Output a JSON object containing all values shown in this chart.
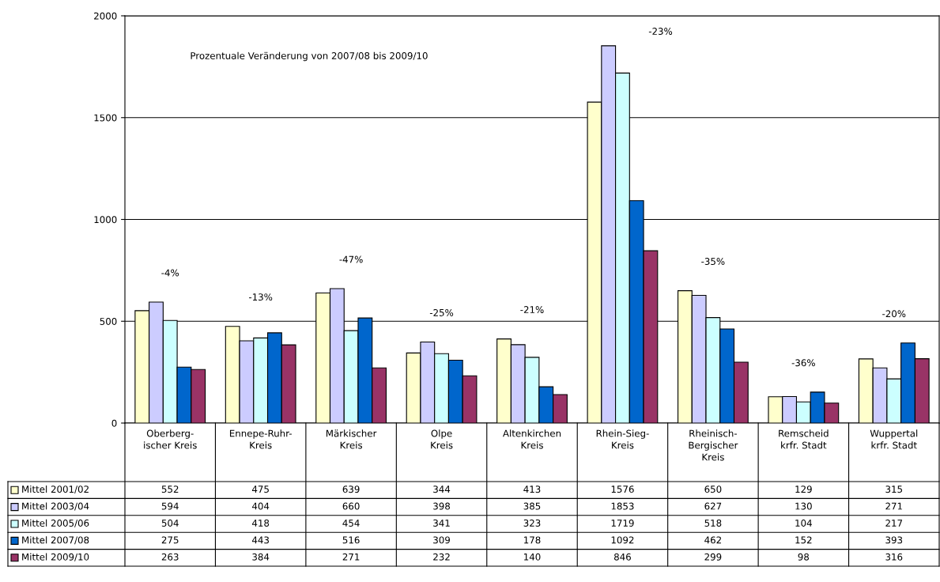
{
  "chart_data": {
    "type": "bar",
    "categories": [
      "Oberberg-\nischer Kreis",
      "Ennepe-Ruhr-\nKreis",
      "Märkischer\nKreis",
      "Olpe\nKreis",
      "Altenkirchen\nKreis",
      "Rhein-Sieg-\nKreis",
      "Rheinisch-\nBergischer\nKreis",
      "Remscheid\nkrfr. Stadt",
      "Wuppertal\nkrfr. Stadt"
    ],
    "series": [
      {
        "name": "Mittel 2001/02",
        "color": "#ffffcc",
        "values": [
          552,
          475,
          639,
          344,
          413,
          1576,
          650,
          129,
          315
        ]
      },
      {
        "name": "Mittel 2003/04",
        "color": "#ccccff",
        "values": [
          594,
          404,
          660,
          398,
          385,
          1853,
          627,
          130,
          271
        ]
      },
      {
        "name": "Mittel 2005/06",
        "color": "#ccffff",
        "values": [
          504,
          418,
          454,
          341,
          323,
          1719,
          518,
          104,
          217
        ]
      },
      {
        "name": "Mittel 2007/08",
        "color": "#0066cc",
        "values": [
          275,
          443,
          516,
          309,
          178,
          1092,
          462,
          152,
          393
        ]
      },
      {
        "name": "Mittel 2009/10",
        "color": "#993366",
        "values": [
          263,
          384,
          271,
          232,
          140,
          846,
          299,
          98,
          316
        ]
      }
    ],
    "ylim": [
      0,
      2000
    ],
    "yticks": [
      0,
      500,
      1000,
      1500,
      2000
    ],
    "grid": "y",
    "legend": "bottom",
    "data_labels": true,
    "annotations": [
      "Prozentuale Veränderung von 2007/08 bis 2009/10",
      "-4%",
      "-13%",
      "-47%",
      "-25%",
      "-21%",
      "-23%",
      "-35%",
      "-36%",
      "-20%"
    ]
  }
}
